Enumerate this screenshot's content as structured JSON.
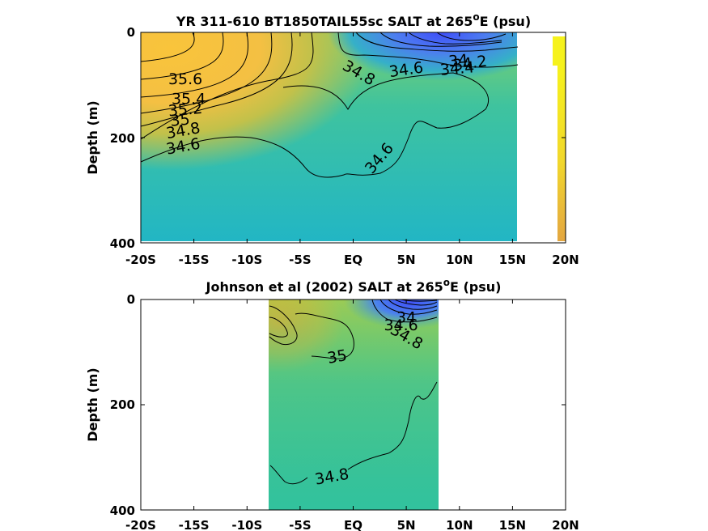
{
  "chart_data": [
    {
      "type": "heatmap",
      "title_main": "YR 311-610 BT1850TAIL55sc SALT at 265",
      "title_super": "o",
      "title_end": "E (psu)",
      "xlabel": "",
      "ylabel": "Depth (m)",
      "x_ticks": [
        "-20S",
        "-15S",
        "-10S",
        "-5S",
        "EQ",
        "5N",
        "10N",
        "15N",
        "20N"
      ],
      "y_ticks": [
        "0",
        "200",
        "400"
      ],
      "xlim": [
        -20,
        20
      ],
      "ylim": [
        0,
        400
      ],
      "data_lon_range": [
        -20,
        15.2
      ],
      "colors": {
        "low": "#4a5bf0",
        "mid": "#2fb8b5",
        "high": "#f7c536",
        "max": "#f6f21c"
      },
      "contour_labels": [
        {
          "text": "35.6",
          "lat": -15.8,
          "depth": 90
        },
        {
          "text": "35.4",
          "lat": -15.5,
          "depth": 128
        },
        {
          "text": "35.2",
          "lat": -15.8,
          "depth": 148
        },
        {
          "text": "35",
          "lat": -16.3,
          "depth": 168
        },
        {
          "text": "34.8",
          "lat": -16.0,
          "depth": 188
        },
        {
          "text": "34.6",
          "lat": -16.0,
          "depth": 218
        },
        {
          "text": "34.8",
          "lat": 0.5,
          "depth": 78
        },
        {
          "text": "34.6",
          "lat": 5.0,
          "depth": 72
        },
        {
          "text": "34",
          "lat": 9.9,
          "depth": 55
        },
        {
          "text": "34.2",
          "lat": 11.0,
          "depth": 60
        },
        {
          "text": "34.4",
          "lat": 9.8,
          "depth": 70
        },
        {
          "text": "34.6",
          "lat": 2.5,
          "depth": 240
        }
      ]
    },
    {
      "type": "heatmap",
      "title_main": "Johnson et al (2002) SALT at 265",
      "title_super": "o",
      "title_end": "E (psu)",
      "xlabel": "",
      "ylabel": "Depth (m)",
      "x_ticks": [
        "-20S",
        "-15S",
        "-10S",
        "-5S",
        "EQ",
        "5N",
        "10N",
        "15N",
        "20N"
      ],
      "y_ticks": [
        "0",
        "200",
        "400"
      ],
      "xlim": [
        -20,
        20
      ],
      "ylim": [
        0,
        400
      ],
      "data_lon_range": [
        -8,
        8
      ],
      "colors": {
        "low": "#4a5bf0",
        "mid": "#33c99a",
        "high": "#c8b23c"
      },
      "contour_labels": [
        {
          "text": "34",
          "lat": 5.0,
          "depth": 35
        },
        {
          "text": "34.6",
          "lat": 4.5,
          "depth": 50
        },
        {
          "text": "34.8",
          "lat": 5.0,
          "depth": 72
        },
        {
          "text": "35",
          "lat": -1.5,
          "depth": 110
        },
        {
          "text": "34.8",
          "lat": -2.0,
          "depth": 338
        }
      ]
    }
  ]
}
